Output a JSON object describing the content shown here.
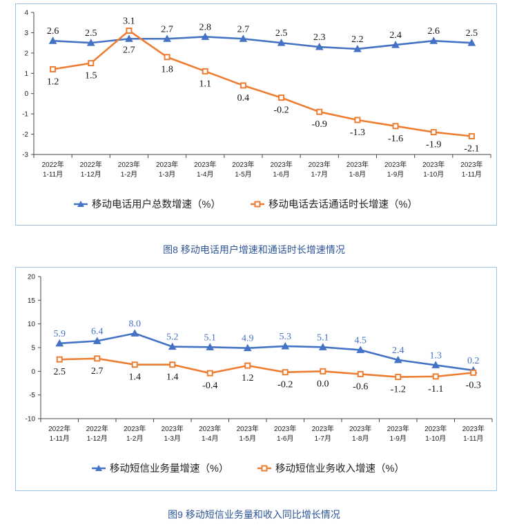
{
  "colors": {
    "series1": "#4472c4",
    "series2": "#ed7d31",
    "border": "#9dc3e6",
    "caption": "#2e5597"
  },
  "chart_data": [
    {
      "type": "line",
      "categories": [
        [
          "2022年",
          "1-11月"
        ],
        [
          "2022年",
          "1-12月"
        ],
        [
          "2023年",
          "1-2月"
        ],
        [
          "2023年",
          "1-3月"
        ],
        [
          "2023年",
          "1-4月"
        ],
        [
          "2023年",
          "1-5月"
        ],
        [
          "2023年",
          "1-6月"
        ],
        [
          "2023年",
          "1-7月"
        ],
        [
          "2023年",
          "1-8月"
        ],
        [
          "2023年",
          "1-9月"
        ],
        [
          "2023年",
          "1-10月"
        ],
        [
          "2023年",
          "1-11月"
        ]
      ],
      "series": [
        {
          "name": "移动电话用户总数增速（%）",
          "marker": "triangle",
          "color": "#4472c4",
          "values": [
            2.6,
            2.5,
            2.7,
            2.7,
            2.8,
            2.7,
            2.5,
            2.3,
            2.2,
            2.4,
            2.6,
            2.5
          ]
        },
        {
          "name": "移动电话去话通话时长增速（%）",
          "marker": "square",
          "color": "#ed7d31",
          "values": [
            1.2,
            1.5,
            3.1,
            1.8,
            1.1,
            0.4,
            -0.2,
            -0.9,
            -1.3,
            -1.6,
            -1.9,
            -2.1
          ]
        }
      ],
      "ylim": [
        -3,
        4
      ],
      "yticks": [
        -3,
        -2,
        -1,
        0,
        1,
        2,
        3,
        4
      ],
      "legend": "bottom",
      "grid": false,
      "title": ""
    },
    {
      "type": "line",
      "categories": [
        [
          "2022年",
          "1-11月"
        ],
        [
          "2022年",
          "1-12月"
        ],
        [
          "2023年",
          "1-2月"
        ],
        [
          "2023年",
          "1-3月"
        ],
        [
          "2023年",
          "1-4月"
        ],
        [
          "2023年",
          "1-5月"
        ],
        [
          "2023年",
          "1-6月"
        ],
        [
          "2023年",
          "1-7月"
        ],
        [
          "2023年",
          "1-8月"
        ],
        [
          "2023年",
          "1-9月"
        ],
        [
          "2023年",
          "1-10月"
        ],
        [
          "2023年",
          "1-11月"
        ]
      ],
      "series": [
        {
          "name": "移动短信业务量增速（%）",
          "marker": "triangle",
          "color": "#4472c4",
          "values": [
            5.9,
            6.4,
            8.0,
            5.2,
            5.1,
            4.9,
            5.3,
            5.1,
            4.5,
            2.4,
            1.3,
            0.2
          ]
        },
        {
          "name": "移动短信业务收入增速（%）",
          "marker": "square",
          "color": "#ed7d31",
          "values": [
            2.5,
            2.7,
            1.4,
            1.4,
            -0.4,
            1.2,
            -0.2,
            0.0,
            -0.6,
            -1.2,
            -1.1,
            -0.3
          ]
        }
      ],
      "ylim": [
        -10,
        20
      ],
      "yticks": [
        -10,
        -5,
        0,
        5,
        10,
        15,
        20
      ],
      "legend": "bottom",
      "grid": false,
      "title": ""
    }
  ],
  "captions": {
    "chart1": "图8 移动电话用户增速和通话时长增速情况",
    "chart2": "图9 移动短信业务量和收入同比增长情况"
  }
}
